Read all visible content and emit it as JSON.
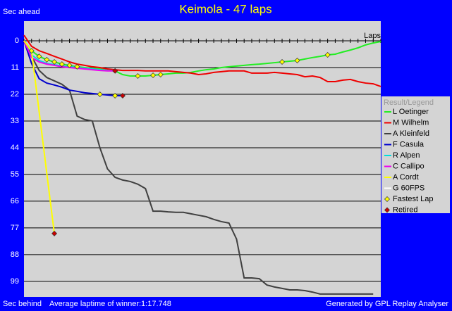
{
  "chart_data": {
    "type": "line",
    "title": "Keimola - 47 laps",
    "y_label_top": "Sec ahead",
    "y_label_bottom": "Sec behind",
    "x_label": "Laps",
    "footer_left": "Average laptime of winner:1:17.748",
    "footer_right": "Generated by GPL Replay Analyser",
    "legend_title": "Result/Legend",
    "fastest_lap_label": "Fastest Lap",
    "retired_label": "Retired",
    "fastest_lap_color": "#ffff00",
    "retired_color": "#cc0000",
    "y_inverted": true,
    "grid": true,
    "legend_position": "right",
    "xlim": [
      0,
      47
    ],
    "ylim": [
      -8.1,
      105.4
    ],
    "yticks": [
      0,
      11,
      22,
      33,
      44,
      55,
      66,
      77,
      88,
      99
    ],
    "x": [
      0,
      1,
      2,
      3,
      4,
      5,
      6,
      7,
      8,
      9,
      10,
      11,
      12,
      13,
      14,
      15,
      16,
      17,
      18,
      19,
      20,
      21,
      22,
      23,
      24,
      25,
      26,
      27,
      28,
      29,
      30,
      31,
      32,
      33,
      34,
      35,
      36,
      37,
      38,
      39,
      40,
      41,
      42,
      43,
      44,
      45,
      46,
      47
    ],
    "series": [
      {
        "name": "L Oetinger",
        "color": "#22ee22",
        "fastest_laps": [
          1,
          2,
          3,
          4,
          5,
          6,
          7,
          15,
          17,
          18,
          34,
          36,
          40
        ],
        "values": [
          0,
          4.1,
          6.4,
          7.8,
          8.7,
          9.6,
          10.1,
          10.7,
          11,
          11.3,
          11.6,
          12.2,
          12.4,
          13.9,
          14.5,
          14.5,
          14.5,
          14.2,
          13.9,
          13.6,
          13.3,
          13.3,
          13,
          12.4,
          11.9,
          11.6,
          11,
          10.7,
          10.4,
          10.1,
          9.8,
          9.6,
          9.3,
          9,
          8.7,
          8.4,
          8.1,
          7.5,
          6.9,
          6.4,
          5.8,
          5.5,
          4.6,
          3.8,
          2.9,
          1.7,
          0.9,
          0.3
        ]
      },
      {
        "name": "M Wilhelm",
        "color": "#ee0000",
        "values": [
          -2.3,
          2.3,
          4.1,
          5.2,
          6.4,
          7.5,
          8.7,
          9.6,
          10.1,
          10.7,
          11,
          11.6,
          11.9,
          12.2,
          12.2,
          12.2,
          12.4,
          12.4,
          12.4,
          12.4,
          12.7,
          13,
          13.3,
          13.9,
          13.6,
          13,
          12.7,
          12.4,
          12.4,
          12.4,
          13.3,
          13.3,
          13.3,
          13,
          13.3,
          13.6,
          13.9,
          14.8,
          14.5,
          15.1,
          16.8,
          16.8,
          16.2,
          15.9,
          16.8,
          17.4,
          17.7,
          18.8
        ]
      },
      {
        "name": "A Kleinfeld",
        "color": "#404040",
        "values": [
          0,
          6.4,
          12.2,
          15.1,
          16.5,
          17.9,
          20.3,
          31,
          32.4,
          33,
          44,
          52.7,
          56.2,
          57.3,
          57.9,
          59,
          60.8,
          70.1,
          70.1,
          70.4,
          70.6,
          70.6,
          71.2,
          71.8,
          72.4,
          73.5,
          74.4,
          75,
          81.6,
          97.6,
          97.6,
          97.9,
          100.5,
          101.3,
          101.9,
          102.5,
          102.5,
          102.8,
          103.4,
          104.2,
          104.2,
          104.2,
          104.2,
          104.2,
          104.2,
          104.2,
          104.2,
          null
        ]
      },
      {
        "name": "F Casula",
        "color": "#0000cc",
        "retired": true,
        "fastest_laps": [
          10,
          12
        ],
        "values": [
          0,
          9.3,
          15.6,
          17.4,
          18.2,
          19.1,
          20.3,
          20.8,
          21.4,
          21.7,
          22,
          22.3,
          22.6,
          22.6,
          null,
          null,
          null,
          null,
          null,
          null,
          null,
          null,
          null,
          null,
          null,
          null,
          null,
          null,
          null,
          null,
          null,
          null,
          null,
          null,
          null,
          null,
          null,
          null,
          null,
          null,
          null,
          null,
          null,
          null,
          null,
          null,
          null,
          null
        ]
      },
      {
        "name": "R Alpen",
        "color": "#00dddd",
        "values": [
          0,
          5.8,
          8.1,
          9.3,
          9.8,
          10.4,
          10.7,
          11,
          11.3,
          11.6,
          11.9,
          12.2,
          12.4,
          null,
          null,
          null,
          null,
          null,
          null,
          null,
          null,
          null,
          null,
          null,
          null,
          null,
          null,
          null,
          null,
          null,
          null,
          null,
          null,
          null,
          null,
          null,
          null,
          null,
          null,
          null,
          null,
          null,
          null,
          null,
          null,
          null,
          null,
          null
        ]
      },
      {
        "name": "C Callipo",
        "color": "#ee00ee",
        "retired": true,
        "values": [
          0,
          6.9,
          8.7,
          9.6,
          10.1,
          10.7,
          11,
          11.3,
          11.6,
          11.9,
          12.2,
          12.4,
          12.4,
          null,
          null,
          null,
          null,
          null,
          null,
          null,
          null,
          null,
          null,
          null,
          null,
          null,
          null,
          null,
          null,
          null,
          null,
          null,
          null,
          null,
          null,
          null,
          null,
          null,
          null,
          null,
          null,
          null,
          null,
          null,
          null,
          null,
          null,
          null
        ]
      },
      {
        "name": "A Cordt",
        "color": "#ffff00",
        "retired": true,
        "values": [
          0,
          4.3,
          29.2,
          54.4,
          79.3,
          null,
          null,
          null,
          null,
          null,
          null,
          null,
          null,
          null,
          null,
          null,
          null,
          null,
          null,
          null,
          null,
          null,
          null,
          null,
          null,
          null,
          null,
          null,
          null,
          null,
          null,
          null,
          null,
          null,
          null,
          null,
          null,
          null,
          null,
          null,
          null,
          null,
          null,
          null,
          null,
          null,
          null,
          null
        ]
      },
      {
        "name": "G 60FPS",
        "color": "#ffffff",
        "values": [
          0,
          null,
          null,
          null,
          null,
          null,
          null,
          null,
          null,
          null,
          null,
          null,
          null,
          null,
          null,
          null,
          null,
          null,
          null,
          null,
          null,
          null,
          null,
          null,
          null,
          null,
          null,
          null,
          null,
          null,
          null,
          null,
          null,
          null,
          null,
          null,
          null,
          null,
          null,
          null,
          null,
          null,
          null,
          null,
          null,
          null,
          null,
          null
        ]
      }
    ]
  }
}
